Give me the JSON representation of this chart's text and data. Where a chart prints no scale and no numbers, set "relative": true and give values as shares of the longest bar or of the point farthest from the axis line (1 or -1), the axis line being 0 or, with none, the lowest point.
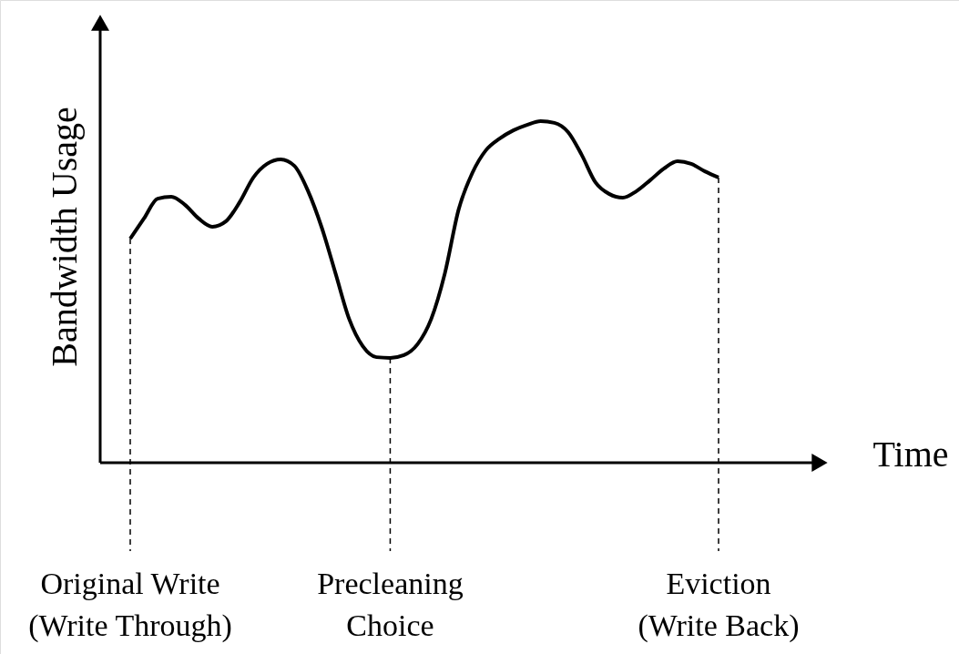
{
  "chart_data": {
    "type": "line",
    "relative": true,
    "xlabel": "Time",
    "ylabel": "Bandwidth Usage",
    "categories": [
      null,
      null,
      null,
      null,
      null,
      null,
      null,
      null,
      null,
      null,
      null,
      null,
      null,
      null,
      null,
      null,
      null,
      null,
      null,
      null,
      null,
      null,
      null,
      null,
      null,
      null,
      null,
      null,
      null,
      null,
      null,
      null,
      null,
      null,
      null,
      null,
      null,
      null,
      null,
      null,
      null,
      null,
      null,
      null
    ],
    "series": [
      {
        "color": "#000000",
        "values": [
          0.656,
          0.715,
          0.773,
          0.779,
          0.755,
          0.715,
          0.691,
          0.707,
          0.763,
          0.835,
          0.875,
          0.888,
          0.869,
          0.795,
          0.688,
          0.555,
          0.421,
          0.341,
          0.309,
          0.307,
          0.315,
          0.347,
          0.421,
          0.555,
          0.741,
          0.848,
          0.915,
          0.949,
          0.973,
          0.989,
          1.0,
          0.995,
          0.968,
          0.901,
          0.821,
          0.787,
          0.776,
          0.795,
          0.827,
          0.861,
          0.883,
          0.875,
          0.853,
          0.835
        ]
      }
    ],
    "annotations": [
      "Original Write\n(Write Through)",
      "Precleaning\nChoice",
      "Eviction\n(Write Back)"
    ],
    "marker": "none",
    "line_style": "solid"
  }
}
